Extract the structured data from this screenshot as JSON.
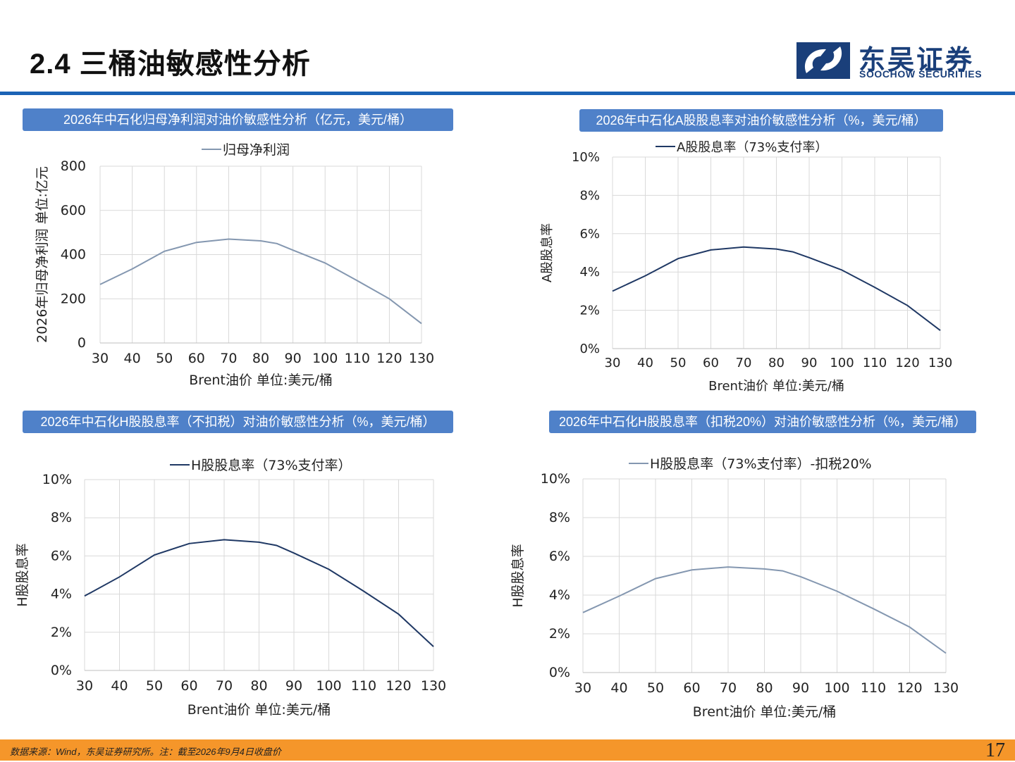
{
  "page": {
    "title": "2.4 三桶油敏感性分析",
    "logo_cn": "东吴证券",
    "logo_en": "SOOCHOW SECURITIES",
    "footer_note": "数据来源：Wind，东吴证券研究所。注：截至2026年9月4日收盘价",
    "page_number": "17",
    "accent_color": "#1b63b5",
    "footer_color": "#f5962a",
    "banner_color": "#4f81c9"
  },
  "chart_data": [
    {
      "type": "line",
      "banner": "2026年中石化归母净利润对油价敏感性分析（亿元，美元/桶）",
      "x": [
        30,
        40,
        50,
        60,
        70,
        80,
        85,
        90,
        100,
        110,
        120,
        130
      ],
      "xticks": [
        "30",
        "40",
        "50",
        "60",
        "70",
        "80",
        "90",
        "100",
        "110",
        "120",
        "130"
      ],
      "yticks": [
        "0",
        "200",
        "400",
        "600",
        "800"
      ],
      "xlabel": "Brent油价  单位:美元/桶",
      "ylabel": "2026年归母净利润  单位:亿元",
      "xlim": [
        30,
        130
      ],
      "ylim": [
        0,
        800
      ],
      "grid": true,
      "legend_position": "top",
      "series": [
        {
          "name": "归母净利润",
          "color": "#8497b0",
          "values": [
            265,
            335,
            415,
            455,
            470,
            462,
            450,
            420,
            362,
            282,
            200,
            88
          ]
        }
      ]
    },
    {
      "type": "line",
      "banner": "2026年中石化A股股息率对油价敏感性分析（%，美元/桶）",
      "x": [
        30,
        40,
        50,
        60,
        70,
        80,
        85,
        90,
        100,
        110,
        120,
        130
      ],
      "xticks": [
        "30",
        "40",
        "50",
        "60",
        "70",
        "80",
        "90",
        "100",
        "110",
        "120",
        "130"
      ],
      "yticks": [
        "0%",
        "2%",
        "4%",
        "6%",
        "8%",
        "10%"
      ],
      "xlabel": "Brent油价  单位:美元/桶",
      "ylabel": "A股股息率",
      "xlim": [
        30,
        130
      ],
      "ylim": [
        0,
        10
      ],
      "grid": true,
      "legend_position": "top",
      "series": [
        {
          "name": "A股股息率（73%支付率）",
          "color": "#1f3864",
          "values": [
            3.0,
            3.8,
            4.7,
            5.15,
            5.3,
            5.2,
            5.05,
            4.75,
            4.1,
            3.2,
            2.25,
            0.95
          ]
        }
      ]
    },
    {
      "type": "line",
      "banner": "2026年中石化H股股息率（不扣税）对油价敏感性分析（%，美元/桶）",
      "x": [
        30,
        40,
        50,
        60,
        70,
        80,
        85,
        90,
        100,
        110,
        120,
        130
      ],
      "xticks": [
        "30",
        "40",
        "50",
        "60",
        "70",
        "80",
        "90",
        "100",
        "110",
        "120",
        "130"
      ],
      "yticks": [
        "0%",
        "2%",
        "4%",
        "6%",
        "8%",
        "10%"
      ],
      "xlabel": "Brent油价  单位:美元/桶",
      "ylabel": "H股股息率",
      "xlim": [
        30,
        130
      ],
      "ylim": [
        0,
        10
      ],
      "grid": true,
      "legend_position": "top",
      "series": [
        {
          "name": "H股股息率（73%支付率）",
          "color": "#1f3864",
          "values": [
            3.9,
            4.9,
            6.05,
            6.65,
            6.85,
            6.72,
            6.55,
            6.15,
            5.3,
            4.15,
            2.95,
            1.25
          ]
        }
      ]
    },
    {
      "type": "line",
      "banner": "2026年中石化H股股息率（扣税20%）对油价敏感性分析（%，美元/桶）",
      "x": [
        30,
        40,
        50,
        60,
        70,
        80,
        85,
        90,
        100,
        110,
        120,
        130
      ],
      "xticks": [
        "30",
        "40",
        "50",
        "60",
        "70",
        "80",
        "90",
        "100",
        "110",
        "120",
        "130"
      ],
      "yticks": [
        "0%",
        "2%",
        "4%",
        "6%",
        "8%",
        "10%"
      ],
      "xlabel": "Brent油价  单位:美元/桶",
      "ylabel": "H股股息率",
      "xlim": [
        30,
        130
      ],
      "ylim": [
        0,
        10
      ],
      "grid": true,
      "legend_position": "top",
      "series": [
        {
          "name": "H股股息率（73%支付率）-扣税20%",
          "color": "#8497b0",
          "values": [
            3.1,
            3.95,
            4.85,
            5.3,
            5.45,
            5.35,
            5.25,
            4.95,
            4.2,
            3.3,
            2.35,
            1.0
          ]
        }
      ]
    }
  ]
}
